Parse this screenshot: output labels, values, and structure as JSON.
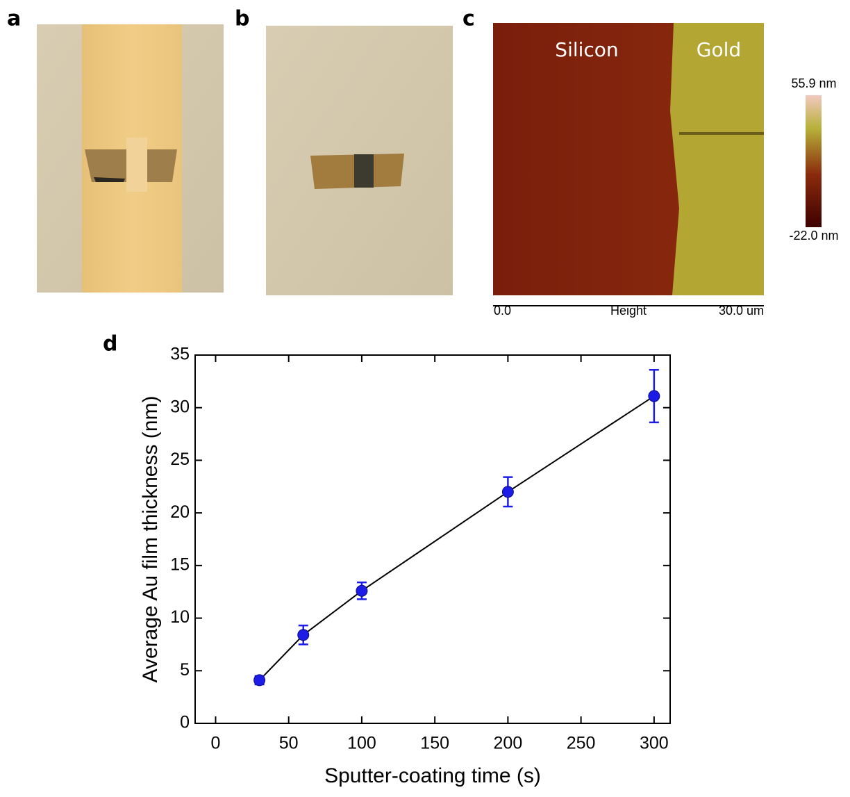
{
  "panel_labels": [
    "a",
    "b",
    "c",
    "d"
  ],
  "afm": {
    "regions": [
      "Silicon",
      "Gold"
    ],
    "scale_max": "55.9 nm",
    "scale_min": "-22.0 nm",
    "axis_start": "0.0",
    "axis_title": "Height",
    "axis_end": "30.0 um"
  },
  "chart_data": {
    "type": "line",
    "x_label": "Sputter-coating time (s)",
    "y_label": "Average Au film thickness (nm)",
    "x": [
      30,
      60,
      100,
      200,
      300
    ],
    "series": [
      {
        "color": "#1c1ce6",
        "line_color": "#000000",
        "values": [
          4.1,
          8.4,
          12.6,
          22.0,
          31.1
        ],
        "errors": [
          0.4,
          0.9,
          0.8,
          1.4,
          2.5
        ]
      }
    ],
    "xlim": [
      -14,
      311
    ],
    "ylim": [
      0,
      35
    ],
    "xticks": [
      0,
      50,
      100,
      150,
      200,
      250,
      300
    ],
    "yticks": [
      0,
      5,
      10,
      15,
      20,
      25,
      30,
      35
    ],
    "grid": false
  }
}
